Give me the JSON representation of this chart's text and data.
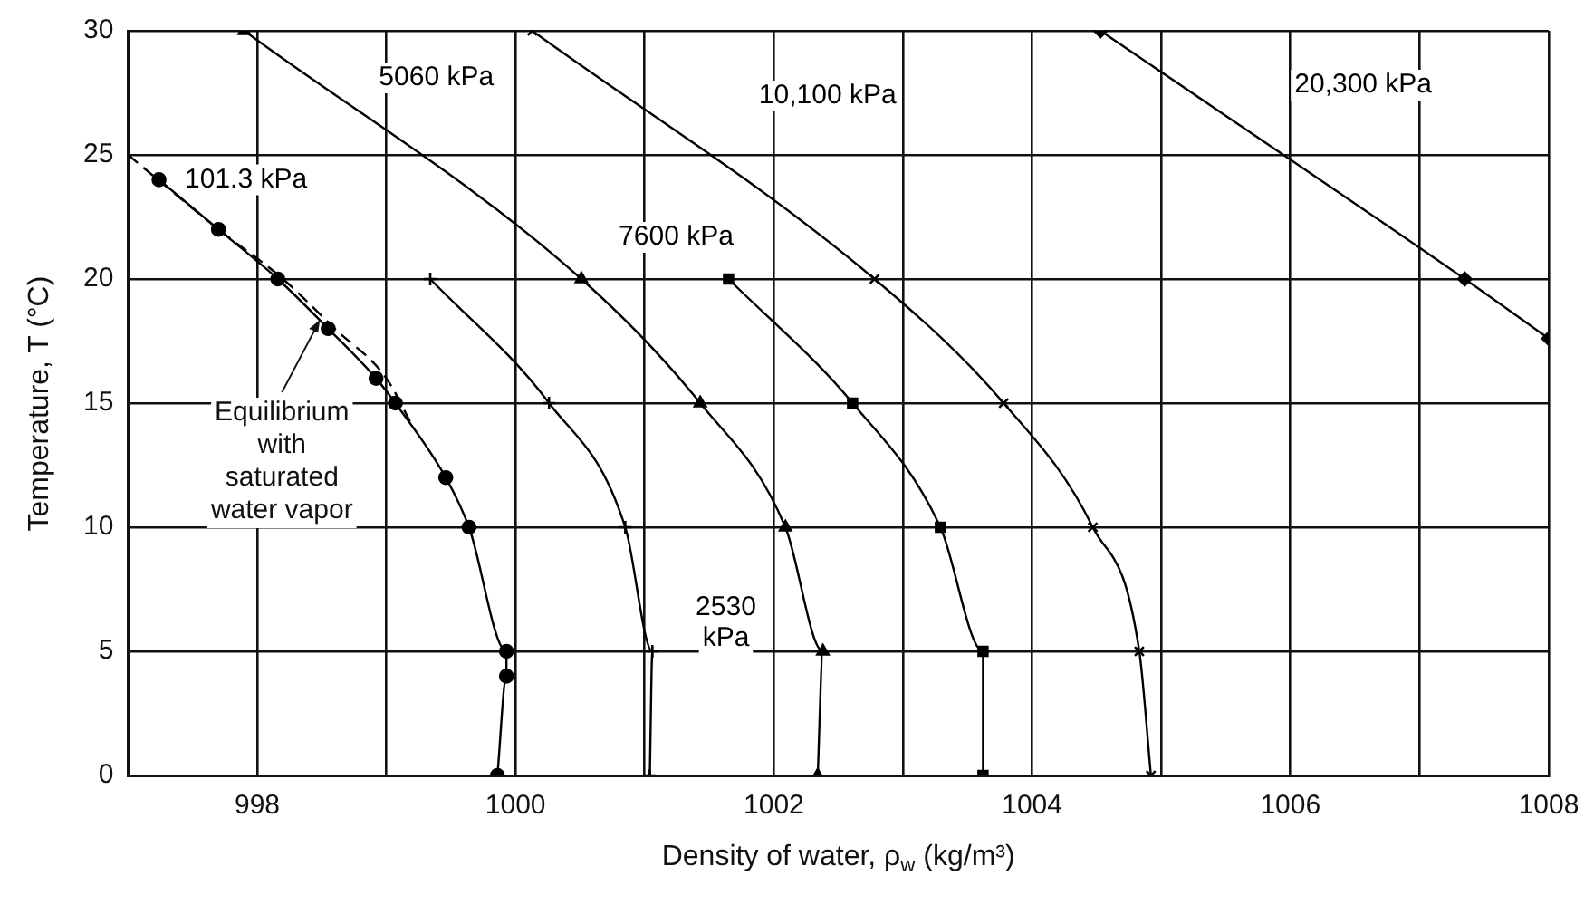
{
  "chart_data": {
    "type": "line",
    "xlabel": "Density of water, ρ$_{w}$ (kg/m³)",
    "ylabel": "Temperature, T (°C)",
    "xlim": [
      997,
      1008
    ],
    "xticks": [
      998,
      {
        "value": 999,
        "label": null
      },
      1000,
      {
        "value": 1001,
        "label": null
      },
      1002,
      {
        "value": 1003,
        "label": null
      },
      1004,
      {
        "value": 1005,
        "label": null
      },
      1006,
      {
        "value": 1007,
        "label": null
      },
      1008
    ],
    "ylim": [
      0,
      30
    ],
    "yticks": [
      0,
      5,
      10,
      15,
      20,
      25,
      30
    ],
    "grid": true,
    "line_style": "solid",
    "series": [
      {
        "name": "101.3 kPa",
        "color": "#000000",
        "marker": "circle",
        "x": [
          997.24,
          997.7,
          998.16,
          998.55,
          998.92,
          999.07,
          999.46,
          999.64,
          999.93,
          999.93,
          999.86
        ],
        "values": [
          24,
          22,
          20,
          18,
          16,
          15,
          12,
          10,
          5,
          4,
          0
        ]
      },
      {
        "color": "#000000",
        "marker": "none",
        "line_style": "dashed",
        "x": [
          997.0,
          997.7,
          998.2,
          998.6,
          999.0,
          999.21
        ],
        "values": [
          25,
          22,
          20,
          18,
          16,
          14
        ]
      },
      {
        "name": "2530\nkPa",
        "color": "#000000",
        "marker": "plus",
        "x": [
          999.34,
          1000.26,
          1000.85,
          1001.06,
          1001.04
        ],
        "values": [
          20,
          15,
          10,
          5,
          0
        ]
      },
      {
        "name": "5060 kPa",
        "color": "#000000",
        "marker": "triangle",
        "x": [
          997.9,
          1000.51,
          1001.43,
          1002.09,
          1002.38,
          1002.34
        ],
        "values": [
          30,
          20,
          15,
          10,
          5,
          0
        ]
      },
      {
        "name": "7600 kPa",
        "color": "#000000",
        "marker": "square",
        "x": [
          1001.65,
          1002.61,
          1003.29,
          1003.62,
          1003.62
        ],
        "values": [
          20,
          15,
          10,
          5,
          0
        ]
      },
      {
        "name": "10,100 kPa",
        "color": "#000000",
        "marker": "cross",
        "x": [
          1000.13,
          1002.78,
          1003.78,
          1004.47,
          1004.83,
          1004.92
        ],
        "values": [
          30,
          20,
          15,
          10,
          5,
          0
        ]
      },
      {
        "name": "20,300 kPa",
        "color": "#000000",
        "marker": "diamond",
        "x": [
          1004.53,
          1007.35,
          1008
        ],
        "values": [
          30,
          20,
          17.6
        ]
      }
    ],
    "annotations": [
      {
        "text": "Equilibrium\nwith\nsaturated\nwater vapor",
        "x": 998.5,
        "y": 18.5
      }
    ]
  }
}
